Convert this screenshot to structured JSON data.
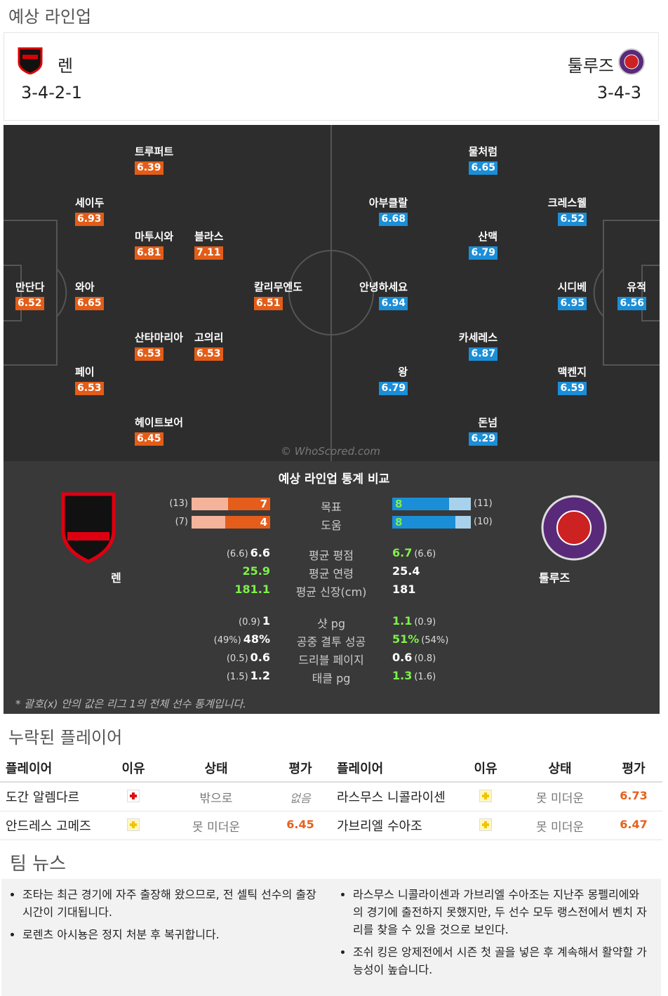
{
  "header": {
    "title": "예상 라인업"
  },
  "teams": {
    "home": {
      "name": "렌",
      "formation": "3-4-2-1"
    },
    "away": {
      "name": "툴루즈",
      "formation": "3-4-3"
    }
  },
  "pitch": {
    "watermark": "© WhoScored.com",
    "home_players": [
      {
        "name": "만단다",
        "rating": 6.52
      },
      {
        "name": "와아",
        "rating": 6.65
      },
      {
        "name": "세이두",
        "rating": 6.93
      },
      {
        "name": "페이",
        "rating": 6.53
      },
      {
        "name": "트루퍼트",
        "rating": 6.39
      },
      {
        "name": "마투시와",
        "rating": 6.81
      },
      {
        "name": "블라스",
        "rating": 7.11
      },
      {
        "name": "산타마리아",
        "rating": 6.53
      },
      {
        "name": "고의리",
        "rating": 6.53
      },
      {
        "name": "헤이트보어",
        "rating": 6.45
      },
      {
        "name": "칼리무엔도",
        "rating": 6.51
      }
    ],
    "away_players": [
      {
        "name": "유적",
        "rating": 6.56
      },
      {
        "name": "크레스웰",
        "rating": 6.52
      },
      {
        "name": "시디베",
        "rating": 6.95
      },
      {
        "name": "맥켄지",
        "rating": 6.59
      },
      {
        "name": "물처럼",
        "rating": 6.65
      },
      {
        "name": "산맥",
        "rating": 6.79
      },
      {
        "name": "카세레스",
        "rating": 6.87
      },
      {
        "name": "돈넘",
        "rating": 6.29
      },
      {
        "name": "아부클랄",
        "rating": 6.68
      },
      {
        "name": "안녕하세요",
        "rating": 6.94
      },
      {
        "name": "왕",
        "rating": 6.79
      }
    ]
  },
  "stats": {
    "title": "예상 라인업 통계 비교",
    "home_name": "렌",
    "away_name": "툴루즈",
    "bars": [
      {
        "label": "목표",
        "home": 7,
        "home_league": {
          "value": 13,
          "label": "(13)"
        },
        "away": 8,
        "away_league": {
          "value": 11,
          "label": "(11)"
        }
      },
      {
        "label": "도움",
        "home": 4,
        "home_league": {
          "value": 7,
          "label": "(7)"
        },
        "away": 8,
        "away_league": {
          "value": 10,
          "label": "(10)"
        }
      }
    ],
    "group1": [
      {
        "label": "평균 평점",
        "home": "6.6",
        "home_league": "(6.6)",
        "away": "6.7",
        "away_league": "(6.6)",
        "highlight": "away"
      },
      {
        "label": "평균 연령",
        "home": "25.9",
        "away": "25.4",
        "highlight": "home"
      },
      {
        "label": "평균 신장(cm)",
        "home": "181.1",
        "away": "181",
        "highlight": "home"
      }
    ],
    "group2": [
      {
        "label": "샷 pg",
        "home": "1",
        "home_league": "(0.9)",
        "away": "1.1",
        "away_league": "(0.9)",
        "highlight": "away"
      },
      {
        "label": "공중 결투 성공",
        "home": "48%",
        "home_league": "(49%)",
        "away": "51%",
        "away_league": "(54%)",
        "highlight": "away"
      },
      {
        "label": "드리블 페이지",
        "home": "0.6",
        "home_league": "(0.5)",
        "away": "0.6",
        "away_league": "(0.8)"
      },
      {
        "label": "태클 pg",
        "home": "1.2",
        "home_league": "(1.5)",
        "away": "1.3",
        "away_league": "(1.6)",
        "highlight": "away"
      }
    ],
    "footnote": "* 괄호(x) 안의 값은 리그 1의 전체 선수 통계입니다."
  },
  "missing": {
    "title": "누락된 플레이어",
    "home_headers": [
      "플레이어",
      "이유",
      "상태",
      "평가"
    ],
    "away_headers": [
      "플레이어",
      "이유",
      "상태",
      "평가"
    ],
    "home_rows": [
      {
        "player": "도간 알렘다르",
        "reason_icon": "injured",
        "status": "밖으로",
        "rating": "없음"
      },
      {
        "player": "안드레스 고메즈",
        "reason_icon": "doubtful",
        "status": "못 미더운",
        "rating": 6.45
      }
    ],
    "away_rows": [
      {
        "player": "라스무스 니콜라이센",
        "reason_icon": "doubtful",
        "status": "못 미더운",
        "rating": 6.73
      },
      {
        "player": "가브리엘 수아조",
        "reason_icon": "doubtful",
        "status": "못 미더운",
        "rating": 6.47
      }
    ]
  },
  "team_news": {
    "title": "팀 뉴스",
    "home": [
      "조타는 최근 경기에 자주 출장해 왔으므로, 전 셀틱 선수의 출장 시간이 기대됩니다.",
      "로렌츠 아시뇽은 정지 처분 후 복귀합니다."
    ],
    "away": [
      "라스무스 니콜라이센과 가브리엘 수아조는 지난주 몽펠리에와의 경기에 출전하지 못했지만, 두 선수 모두 랭스전에서 벤치 자리를 찾을 수 있을 것으로 보인다.",
      "조쉬 킹은 앙제전에서 시즌 첫 골을 넣은 후 계속해서 활약할 가능성이 높습니다."
    ]
  }
}
